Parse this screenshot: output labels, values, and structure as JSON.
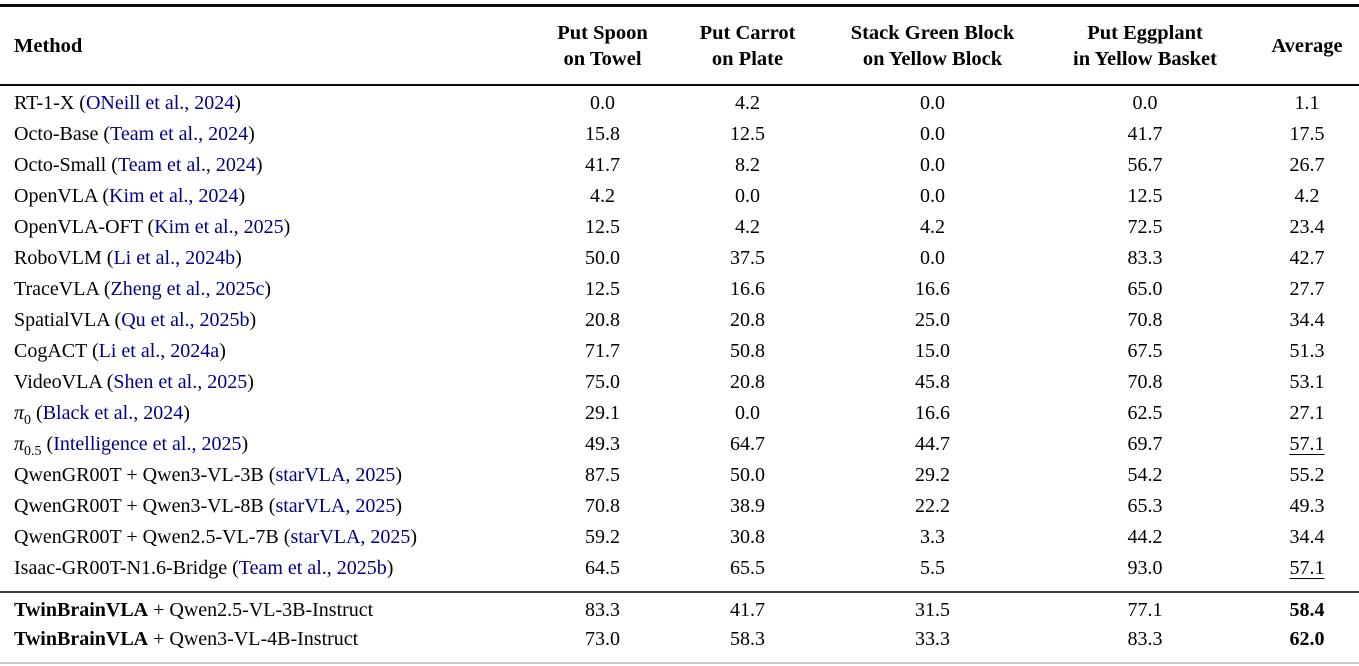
{
  "colors": {
    "citation_link": "#00008b",
    "rule_dark": "#0a0a0a",
    "rule_light": "#c9c9c9",
    "text": "#000000",
    "background": "#ffffff"
  },
  "header": {
    "columns": [
      {
        "id": "method",
        "lines": [
          "Method"
        ]
      },
      {
        "id": "spoon",
        "lines": [
          "Put Spoon",
          "on Towel"
        ]
      },
      {
        "id": "carrot",
        "lines": [
          "Put Carrot",
          "on Plate"
        ]
      },
      {
        "id": "stack",
        "lines": [
          "Stack Green Block",
          "on Yellow Block"
        ]
      },
      {
        "id": "eggplant",
        "lines": [
          "Put Eggplant",
          "in Yellow Basket"
        ]
      },
      {
        "id": "average",
        "lines": [
          "Average"
        ]
      }
    ]
  },
  "body_rows": [
    {
      "method": "RT-1-X",
      "citation": "ONeill et al., 2024",
      "values": [
        "0.0",
        "4.2",
        "0.0",
        "0.0"
      ],
      "average": "1.1",
      "average_style": "normal"
    },
    {
      "method": "Octo-Base",
      "citation": "Team et al., 2024",
      "values": [
        "15.8",
        "12.5",
        "0.0",
        "41.7"
      ],
      "average": "17.5",
      "average_style": "normal"
    },
    {
      "method": "Octo-Small",
      "citation": "Team et al., 2024",
      "values": [
        "41.7",
        "8.2",
        "0.0",
        "56.7"
      ],
      "average": "26.7",
      "average_style": "normal"
    },
    {
      "method": "OpenVLA",
      "citation": "Kim et al., 2024",
      "values": [
        "4.2",
        "0.0",
        "0.0",
        "12.5"
      ],
      "average": "4.2",
      "average_style": "normal"
    },
    {
      "method": "OpenVLA-OFT",
      "citation": "Kim et al., 2025",
      "values": [
        "12.5",
        "4.2",
        "4.2",
        "72.5"
      ],
      "average": "23.4",
      "average_style": "normal"
    },
    {
      "method": "RoboVLM",
      "citation": "Li et al., 2024b",
      "values": [
        "50.0",
        "37.5",
        "0.0",
        "83.3"
      ],
      "average": "42.7",
      "average_style": "normal"
    },
    {
      "method": "TraceVLA",
      "citation": "Zheng et al., 2025c",
      "values": [
        "12.5",
        "16.6",
        "16.6",
        "65.0"
      ],
      "average": "27.7",
      "average_style": "normal"
    },
    {
      "method": "SpatialVLA",
      "citation": "Qu et al., 2025b",
      "values": [
        "20.8",
        "20.8",
        "25.0",
        "70.8"
      ],
      "average": "34.4",
      "average_style": "normal"
    },
    {
      "method": "CogACT",
      "citation": "Li et al., 2024a",
      "values": [
        "71.7",
        "50.8",
        "15.0",
        "67.5"
      ],
      "average": "51.3",
      "average_style": "normal"
    },
    {
      "method": "VideoVLA",
      "citation": "Shen et al., 2025",
      "values": [
        "75.0",
        "20.8",
        "45.8",
        "70.8"
      ],
      "average": "53.1",
      "average_style": "normal"
    },
    {
      "method": "π",
      "method_sub": "0",
      "method_italic": true,
      "citation": "Black et al., 2024",
      "values": [
        "29.1",
        "0.0",
        "16.6",
        "62.5"
      ],
      "average": "27.1",
      "average_style": "normal"
    },
    {
      "method": "π",
      "method_sub": "0.5",
      "method_italic": true,
      "citation": "Intelligence et al., 2025",
      "values": [
        "49.3",
        "64.7",
        "44.7",
        "69.7"
      ],
      "average": "57.1",
      "average_style": "underline"
    },
    {
      "method": "QwenGR00T + Qwen3-VL-3B",
      "citation": "starVLA, 2025",
      "values": [
        "87.5",
        "50.0",
        "29.2",
        "54.2"
      ],
      "average": "55.2",
      "average_style": "normal"
    },
    {
      "method": "QwenGR00T + Qwen3-VL-8B",
      "citation": "starVLA, 2025",
      "values": [
        "70.8",
        "38.9",
        "22.2",
        "65.3"
      ],
      "average": "49.3",
      "average_style": "normal"
    },
    {
      "method": "QwenGR00T + Qwen2.5-VL-7B",
      "citation": "starVLA, 2025",
      "values": [
        "59.2",
        "30.8",
        "3.3",
        "44.2"
      ],
      "average": "34.4",
      "average_style": "normal"
    },
    {
      "method": "Isaac-GR00T-N1.6-Bridge",
      "citation": "Team et al., 2025b",
      "values": [
        "64.5",
        "65.5",
        "5.5",
        "93.0"
      ],
      "average": "57.1",
      "average_style": "underline"
    }
  ],
  "footer_rows": [
    {
      "method_bold": "TwinBrainVLA",
      "method_rest": " + Qwen2.5-VL-3B-Instruct",
      "values": [
        "83.3",
        "41.7",
        "31.5",
        "77.1"
      ],
      "average": "58.4",
      "average_style": "bold"
    },
    {
      "method_bold": "TwinBrainVLA",
      "method_rest": " + Qwen3-VL-4B-Instruct",
      "values": [
        "73.0",
        "58.3",
        "33.3",
        "83.3"
      ],
      "average": "62.0",
      "average_style": "bold"
    }
  ]
}
